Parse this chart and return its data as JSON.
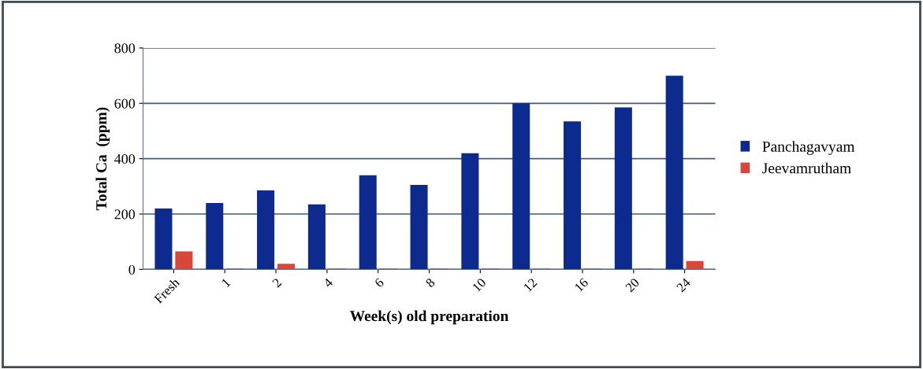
{
  "chart_data": {
    "type": "bar",
    "xlabel": "Week(s) old preparation",
    "ylabel": "Total Ca  (ppm)",
    "categories": [
      "Fresh",
      "1",
      "2",
      "4",
      "6",
      "8",
      "10",
      "12",
      "16",
      "20",
      "24"
    ],
    "series": [
      {
        "name": "Panchagavyam",
        "color": "#0d2b8f",
        "values": [
          220,
          240,
          285,
          235,
          340,
          305,
          420,
          600,
          535,
          585,
          700
        ]
      },
      {
        "name": "Jeevamrutham",
        "color": "#d9473a",
        "values": [
          65,
          3,
          20,
          3,
          3,
          3,
          3,
          3,
          3,
          3,
          30
        ]
      }
    ],
    "ylim": [
      0,
      800
    ],
    "yticks": [
      0,
      200,
      400,
      600,
      800
    ],
    "grid": "y",
    "legend": "right"
  }
}
